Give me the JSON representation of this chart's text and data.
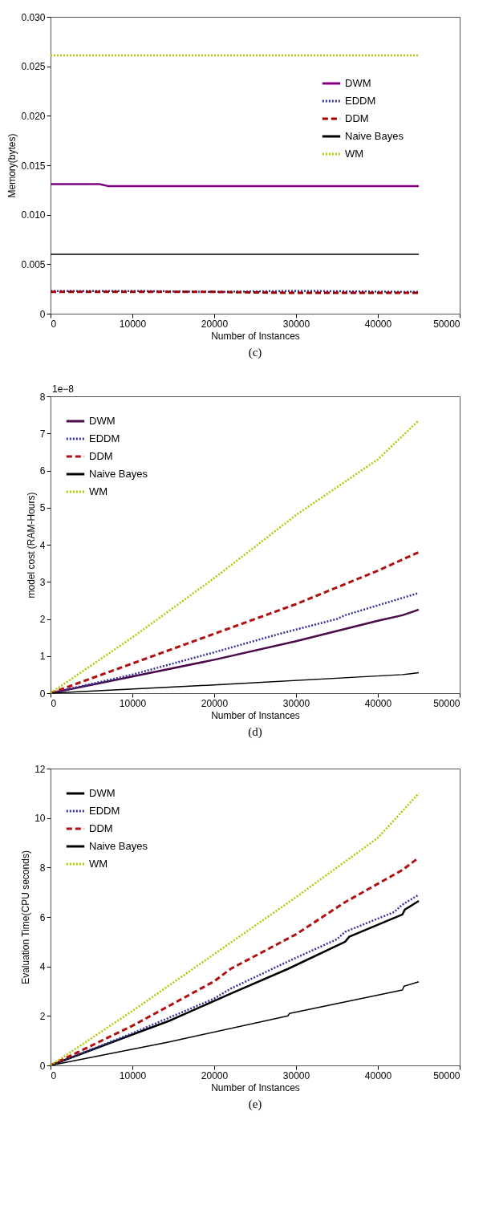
{
  "chart_data": [
    {
      "type": "line",
      "xlabel": "Number of Instances",
      "ylabel": "Memory(bytes)",
      "annotations": [
        "(c)"
      ],
      "legend": "top right",
      "grid": false,
      "xlim": [
        0,
        50000
      ],
      "xticks": [
        0,
        10000,
        20000,
        30000,
        40000,
        50000
      ],
      "ylim": [
        0,
        0.03
      ],
      "yticks": [
        0,
        {
          "value": 0.005,
          "label": "0.005"
        },
        {
          "value": 0.01,
          "label": "0.010"
        },
        {
          "value": 0.015,
          "label": "0.015"
        },
        {
          "value": 0.02,
          "label": "0.020"
        },
        {
          "value": 0.025,
          "label": "0.025"
        },
        {
          "value": 0.03,
          "label": "0.030"
        }
      ],
      "series": [
        {
          "name": "DWM",
          "color": "#800080",
          "line_style": "solid",
          "x": [
            0,
            6000,
            7000,
            45000
          ],
          "values": [
            0.0131,
            0.0131,
            0.0129,
            0.0129
          ]
        },
        {
          "name": "EDDM",
          "color": "#333399",
          "line_style": "dotted",
          "x": [
            0,
            10000,
            20000,
            30000,
            45000
          ],
          "values": [
            0.0023,
            0.0023,
            0.0022,
            0.0023,
            0.0022
          ]
        },
        {
          "name": "DDM",
          "color": "#990000",
          "line_style": "dashed",
          "x": [
            0,
            10000,
            20000,
            30000,
            45000
          ],
          "values": [
            0.0022,
            0.0022,
            0.0022,
            0.0021,
            0.0021
          ]
        },
        {
          "name": "Naive Bayes",
          "color": "#000000",
          "line_style": "solid",
          "x": [
            0,
            45000
          ],
          "values": [
            0.006,
            0.006
          ]
        },
        {
          "name": "WM",
          "color": "#b5c700",
          "line_style": "dotted",
          "x": [
            0,
            45000
          ],
          "values": [
            0.0261,
            0.0261
          ]
        }
      ]
    },
    {
      "type": "line",
      "xlabel": "Number of Instances",
      "ylabel": "model cost (RAM-Hours)",
      "annotations": [
        "1e−8",
        "(d)"
      ],
      "legend": "top left",
      "grid": false,
      "xlim": [
        0,
        50000
      ],
      "xticks": [
        0,
        10000,
        20000,
        30000,
        40000,
        50000
      ],
      "ylim": [
        0,
        8
      ],
      "yticks": [
        0,
        1,
        2,
        3,
        4,
        5,
        6,
        7,
        8
      ],
      "series": [
        {
          "name": "DWM",
          "color": "#4a0a4a",
          "line_style": "solid",
          "x": [
            0,
            10000,
            20000,
            30000,
            40000,
            43000,
            45000
          ],
          "values": [
            0,
            0.45,
            0.9,
            1.4,
            1.95,
            2.1,
            2.25
          ]
        },
        {
          "name": "EDDM",
          "color": "#333399",
          "line_style": "dotted",
          "x": [
            0,
            10000,
            20000,
            28000,
            35000,
            36000,
            42000,
            45000
          ],
          "values": [
            0,
            0.5,
            1.1,
            1.6,
            2.0,
            2.1,
            2.5,
            2.7
          ]
        },
        {
          "name": "DDM",
          "color": "#b01010",
          "line_style": "dashed",
          "x": [
            0,
            10000,
            20000,
            30000,
            40000,
            45000
          ],
          "values": [
            0,
            0.8,
            1.6,
            2.4,
            3.3,
            3.8
          ]
        },
        {
          "name": "Naive Bayes",
          "color": "#000000",
          "line_style": "solid",
          "x": [
            0,
            20000,
            43000,
            45000
          ],
          "values": [
            0,
            0.22,
            0.5,
            0.55
          ]
        },
        {
          "name": "WM",
          "color": "#b5c700",
          "line_style": "dotted",
          "x": [
            0,
            10000,
            20000,
            30000,
            40000,
            45000
          ],
          "values": [
            0,
            1.5,
            3.1,
            4.8,
            6.3,
            7.35
          ]
        }
      ]
    },
    {
      "type": "line",
      "xlabel": "Number of Instances",
      "ylabel": "Evaluation Time(CPU seconds)",
      "annotations": [
        "(e)"
      ],
      "legend": "top left",
      "grid": false,
      "xlim": [
        0,
        50000
      ],
      "xticks": [
        0,
        10000,
        20000,
        30000,
        40000,
        50000
      ],
      "ylim": [
        0,
        12
      ],
      "yticks": [
        0,
        2,
        4,
        6,
        8,
        10,
        12
      ],
      "series": [
        {
          "name": "DWM",
          "color": "#000000",
          "line_style": "solid",
          "x": [
            0,
            10000,
            14500,
            22000,
            29000,
            36000,
            36500,
            43000,
            43300,
            45000
          ],
          "values": [
            0,
            1.25,
            1.8,
            2.9,
            3.9,
            5.0,
            5.2,
            6.1,
            6.3,
            6.65
          ]
        },
        {
          "name": "EDDM",
          "color": "#333399",
          "line_style": "dotted",
          "x": [
            0,
            10000,
            20000,
            22000,
            29000,
            35000,
            36000,
            42000,
            43000,
            45000
          ],
          "values": [
            0,
            1.3,
            2.7,
            3.1,
            4.2,
            5.1,
            5.4,
            6.2,
            6.5,
            6.9
          ]
        },
        {
          "name": "DDM",
          "color": "#b01010",
          "line_style": "dashed",
          "x": [
            0,
            10000,
            20000,
            22000,
            30000,
            36000,
            43000,
            45000
          ],
          "values": [
            0,
            1.6,
            3.4,
            3.9,
            5.3,
            6.6,
            7.9,
            8.4
          ]
        },
        {
          "name": "Naive Bayes",
          "color": "#000000",
          "line_style": "solid",
          "x": [
            0,
            14500,
            29000,
            29200,
            43000,
            43200,
            45000
          ],
          "values": [
            0,
            0.95,
            2.0,
            2.1,
            3.05,
            3.2,
            3.38
          ]
        },
        {
          "name": "WM",
          "color": "#b5c700",
          "line_style": "dotted",
          "x": [
            0,
            10000,
            20000,
            30000,
            40000,
            45000
          ],
          "values": [
            0,
            2.2,
            4.5,
            6.8,
            9.2,
            11.0
          ]
        }
      ]
    }
  ]
}
